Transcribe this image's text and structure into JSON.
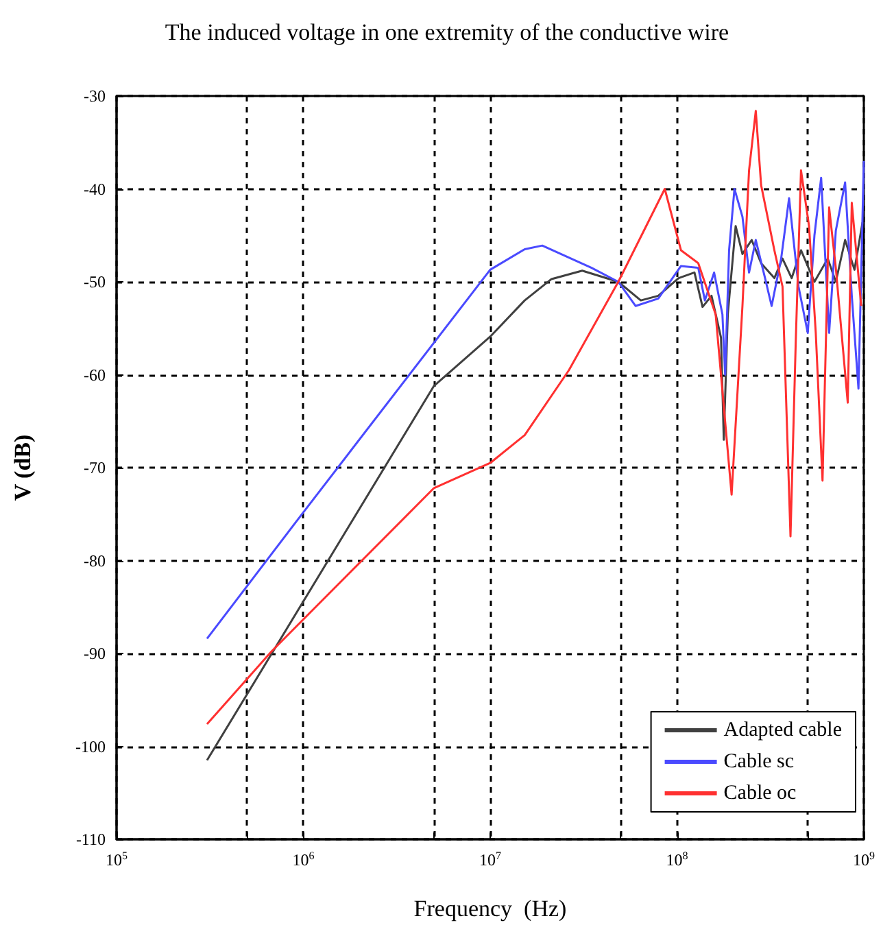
{
  "chart_data": {
    "type": "line",
    "title": "The induced voltage in one extremity of the conductive wire",
    "xlabel": "Frequency  (Hz)",
    "ylabel": "V (dB)",
    "log": "x",
    "grid": true,
    "legend": "bottom right",
    "marker": "none",
    "line_style": "solid",
    "xlim": [
      100000,
      1000000000
    ],
    "xticks": [
      {
        "value": 100000,
        "label": "10$^{5}$"
      },
      {
        "value": 500000,
        "label": null
      },
      {
        "value": 1000000,
        "label": "10$^{6}$"
      },
      {
        "value": 5000000,
        "label": null
      },
      {
        "value": 10000000,
        "label": "10$^{7}$"
      },
      {
        "value": 50000000,
        "label": null
      },
      {
        "value": 100000000,
        "label": "10$^{8}$"
      },
      {
        "value": 500000000,
        "label": null
      },
      {
        "value": 1000000000,
        "label": "10$^{9}$"
      }
    ],
    "ylim": [
      -110,
      -30
    ],
    "yticks": [
      -110,
      -100,
      -90,
      -80,
      -70,
      -60,
      -50,
      -40,
      -30
    ],
    "series": [
      {
        "name": "Adapted cable",
        "color": "#404040",
        "x": [
          305000,
          5000000,
          10000000,
          15300000,
          21300000,
          31100000,
          48500000,
          64000000,
          79400000,
          102000000,
          124000000,
          137000000,
          153000000,
          172000000,
          178000000,
          187000000,
          206000000,
          224000000,
          251000000,
          282000000,
          332000000,
          367000000,
          411000000,
          461000000,
          544000000,
          641000000,
          708000000,
          794000000,
          891000000,
          984000000
        ],
        "values": [
          -101.5,
          -61.2,
          -55.9,
          -52,
          -49.7,
          -48.8,
          -50,
          -52,
          -51.5,
          -49.6,
          -49,
          -52.7,
          -51.5,
          -56,
          -67,
          -53.5,
          -44,
          -47,
          -45.5,
          -48,
          -49.6,
          -47.5,
          -49.6,
          -46.6,
          -50,
          -47.5,
          -50,
          -45.5,
          -48.7,
          -43.6
        ]
      },
      {
        "name": "Cable sc",
        "color": "#4a4aff",
        "x": [
          305000,
          1000000,
          10000000,
          15300000,
          19000000,
          34900000,
          48500000,
          60000000,
          79400000,
          105000000,
          130000000,
          141000000,
          158000000,
          175000000,
          181000000,
          190000000,
          203000000,
          224000000,
          243000000,
          264000000,
          296000000,
          321000000,
          361000000,
          398000000,
          447000000,
          501000000,
          544000000,
          591000000,
          652000000,
          708000000,
          794000000,
          862000000,
          936000000,
          1000000000
        ],
        "values": [
          -88.4,
          -74.8,
          -48.7,
          -46.5,
          -46.1,
          -48.5,
          -50,
          -52.6,
          -51.8,
          -48.3,
          -48.5,
          -52,
          -49,
          -53.5,
          -60,
          -46.6,
          -40,
          -43,
          -49,
          -45.5,
          -49.6,
          -52.6,
          -47.5,
          -41,
          -50.5,
          -55.5,
          -45,
          -38.8,
          -55.5,
          -44.5,
          -39.3,
          -51.5,
          -61.5,
          -37
        ]
      },
      {
        "name": "Cable oc",
        "color": "#ff3030",
        "x": [
          305000,
          674000,
          5000000,
          10000000,
          15300000,
          26400000,
          48500000,
          86000000,
          105000000,
          130000000,
          161000000,
          196000000,
          224000000,
          243000000,
          264000000,
          282000000,
          332000000,
          367000000,
          405000000,
          432000000,
          461000000,
          509000000,
          553000000,
          601000000,
          652000000,
          708000000,
          820000000,
          862000000,
          968000000
        ],
        "values": [
          -97.6,
          -89.8,
          -72.2,
          -69.5,
          -66.5,
          -59.5,
          -50,
          -40,
          -46.6,
          -48,
          -53.5,
          -72.9,
          -52.6,
          -38,
          -31.6,
          -39.6,
          -46.6,
          -50.5,
          -77.4,
          -56.5,
          -38,
          -44,
          -55.5,
          -71.4,
          -42,
          -48.5,
          -63,
          -41.5,
          -52.6
        ]
      }
    ]
  }
}
